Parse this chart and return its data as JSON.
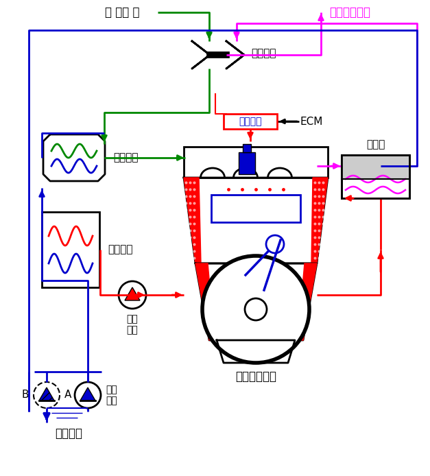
{
  "bg": "#ffffff",
  "G": "#008800",
  "M": "#ff00ff",
  "R": "#ff0000",
  "B": "#0000cc",
  "K": "#000000",
  "labels": {
    "air": "〈 공기 〉",
    "exhaust_gas": "〈배기가스〉",
    "turbo": "터보차져",
    "intercooler": "인터쿨러",
    "heat_exchanger": "열교환기",
    "circ_pump": "순환\n펌프",
    "sea_pump": "해수\n펌프",
    "sea_water": "〈해수〉",
    "engine": "선박디젤엔진",
    "exhaust_pipe": "배기관",
    "fuel_control": "연료제어",
    "ecm": "ECM",
    "A": "A",
    "B": "B"
  }
}
